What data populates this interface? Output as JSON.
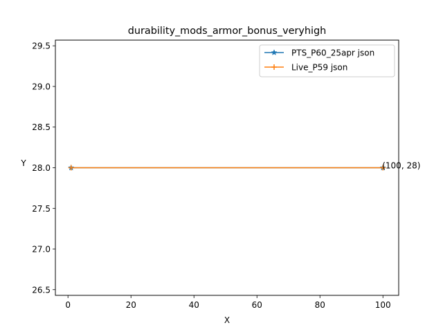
{
  "chart_data": {
    "type": "line",
    "title": "durability_mods_armor_bonus_veryhigh",
    "xlabel": "X",
    "ylabel": "Y",
    "xlim": [
      -4,
      105
    ],
    "ylim": [
      26.43,
      29.57
    ],
    "xticks": [
      0,
      20,
      40,
      60,
      80,
      100
    ],
    "xtick_labels": [
      "0",
      "20",
      "40",
      "60",
      "80",
      "100"
    ],
    "yticks": [
      26.5,
      27.0,
      27.5,
      28.0,
      28.5,
      29.0,
      29.5
    ],
    "ytick_labels": [
      "26.5",
      "27.0",
      "27.5",
      "28.0",
      "28.5",
      "29.0",
      "29.5"
    ],
    "grid": false,
    "legend_position": "top-right",
    "series": [
      {
        "name": "PTS_P60_25apr json",
        "color": "#1f77b4",
        "marker": "star",
        "x": [
          1,
          100
        ],
        "y": [
          28,
          28
        ]
      },
      {
        "name": "Live_P59 json",
        "color": "#ff7f0e",
        "marker": "plus",
        "x": [
          1,
          100
        ],
        "y": [
          28,
          28
        ]
      }
    ],
    "annotations": [
      {
        "text": "(100, 28)",
        "x": 100,
        "y": 28
      }
    ]
  }
}
